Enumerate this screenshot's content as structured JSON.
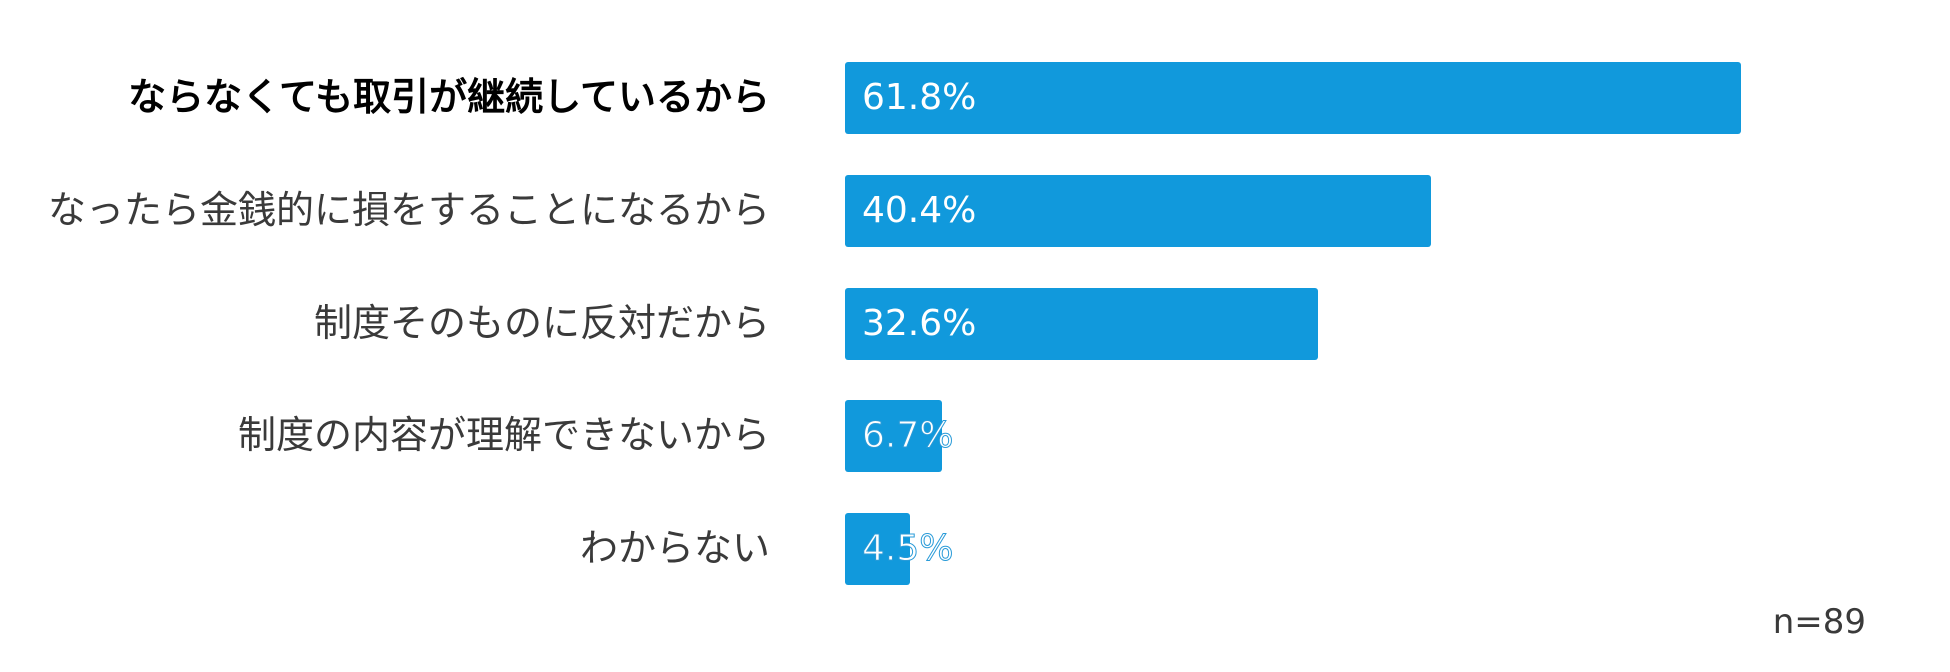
{
  "chart_data": {
    "type": "bar",
    "orientation": "horizontal",
    "categories": [
      "ならなくても取引が継続しているから",
      "なったら金銭的に損をすることになるから",
      "制度そのものに反対だから",
      "制度の内容が理解できないから",
      "わからない"
    ],
    "values": [
      61.8,
      40.4,
      32.6,
      6.7,
      4.5
    ],
    "value_labels": [
      "61.8%",
      "40.4%",
      "32.6%",
      "6.7%",
      "4.5%"
    ],
    "unit": "%",
    "xlim": [
      0,
      100
    ],
    "grid": false,
    "bar_color": "#1199dc",
    "note": "n=89"
  }
}
